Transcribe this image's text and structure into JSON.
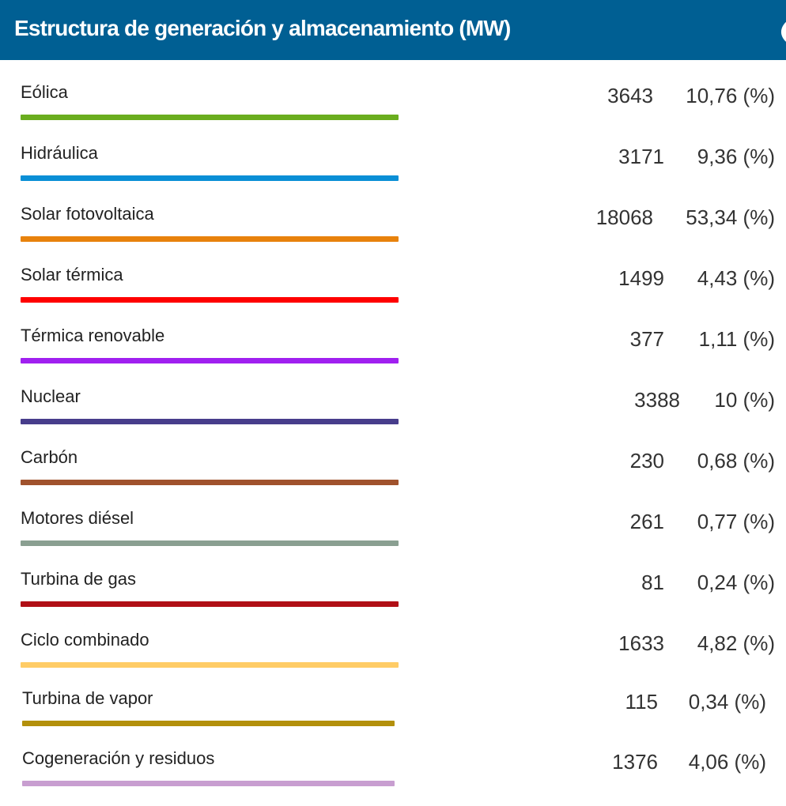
{
  "header": {
    "title": "Estructura de generación y almacenamiento (MW)",
    "icon": "leaf-icon",
    "background_color": "#005f93"
  },
  "rows": [
    {
      "label": "Eólica",
      "value": "3643",
      "percent": "10,76 (%)",
      "color": "#6aad1e"
    },
    {
      "label": "Hidráulica",
      "value": "3171",
      "percent": "9,36 (%)",
      "color": "#0a8fd6"
    },
    {
      "label": "Solar fotovoltaica",
      "value": "18068",
      "percent": "53,34 (%)",
      "color": "#e8820c"
    },
    {
      "label": "Solar térmica",
      "value": "1499",
      "percent": "4,43 (%)",
      "color": "#ff0000"
    },
    {
      "label": "Térmica renovable",
      "value": "377",
      "percent": "1,11 (%)",
      "color": "#a020f0"
    },
    {
      "label": "Nuclear",
      "value": "3388",
      "percent": "10 (%)",
      "color": "#473d8b"
    },
    {
      "label": "Carbón",
      "value": "230",
      "percent": "0,68 (%)",
      "color": "#a0522d"
    },
    {
      "label": "Motores diésel",
      "value": "261",
      "percent": "0,77 (%)",
      "color": "#8a9f91"
    },
    {
      "label": "Turbina de gas",
      "value": "81",
      "percent": "0,24 (%)",
      "color": "#b00f16"
    },
    {
      "label": "Ciclo combinado",
      "value": "1633",
      "percent": "4,82 (%)",
      "color": "#ffcc66"
    },
    {
      "label": "Turbina de vapor",
      "value": "115",
      "percent": "0,34 (%)",
      "color": "#b3900c"
    },
    {
      "label": "Cogeneración y residuos",
      "value": "1376",
      "percent": "4,06 (%)",
      "color": "#c89ed0"
    }
  ]
}
